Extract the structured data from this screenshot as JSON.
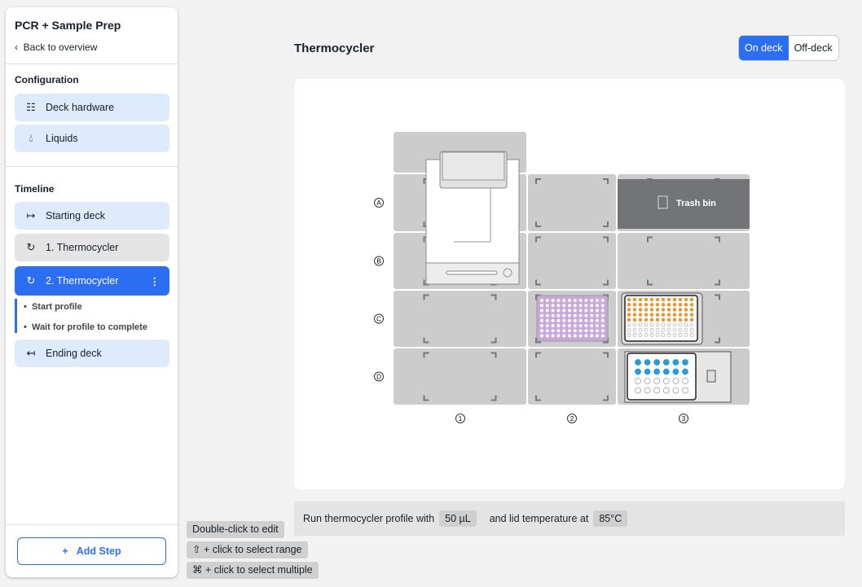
{
  "sidebar": {
    "title": "PCR + Sample Prep",
    "back": "Back to overview",
    "configuration": {
      "heading": "Configuration",
      "items": [
        {
          "label": "Deck hardware",
          "icon": "grid-icon"
        },
        {
          "label": "Liquids",
          "icon": "droplet-icon"
        }
      ]
    },
    "timeline": {
      "heading": "Timeline",
      "items": [
        {
          "label": "Starting deck",
          "icon": "arrow-right-bar-icon"
        },
        {
          "label": "1. Thermocycler",
          "icon": "cycle-icon"
        },
        {
          "label": "2. Thermocycler",
          "icon": "cycle-icon"
        },
        {
          "label": "Ending deck",
          "icon": "arrow-left-bar-icon"
        }
      ],
      "substeps": [
        "Start profile",
        "Wait for profile to complete"
      ]
    },
    "add_step": "Add Step"
  },
  "main": {
    "title": "Thermocycler",
    "toggle": {
      "on": "On deck",
      "off": "Off-deck",
      "selected": "On deck"
    }
  },
  "deck": {
    "rows": [
      "A",
      "B",
      "C",
      "D"
    ],
    "columns": [
      "1",
      "2",
      "3"
    ],
    "trash_label": "Trash bin",
    "colors": {
      "slot": "#cccccc",
      "trash": "#737478",
      "purple_plate": "#c9a7d9",
      "orange_well": "#e39b3a",
      "blue_well": "#2c9ad4"
    },
    "orange_filled_rows": 5,
    "blue_filled_rows": 2
  },
  "summary": {
    "prefix": "Run thermocycler profile with",
    "volume": "50 µL",
    "middle": "and lid temperature at",
    "temperature": "85°C"
  },
  "hints": [
    "Double-click to edit",
    "⇧ + click to select range",
    "⌘ + click to select multiple"
  ]
}
